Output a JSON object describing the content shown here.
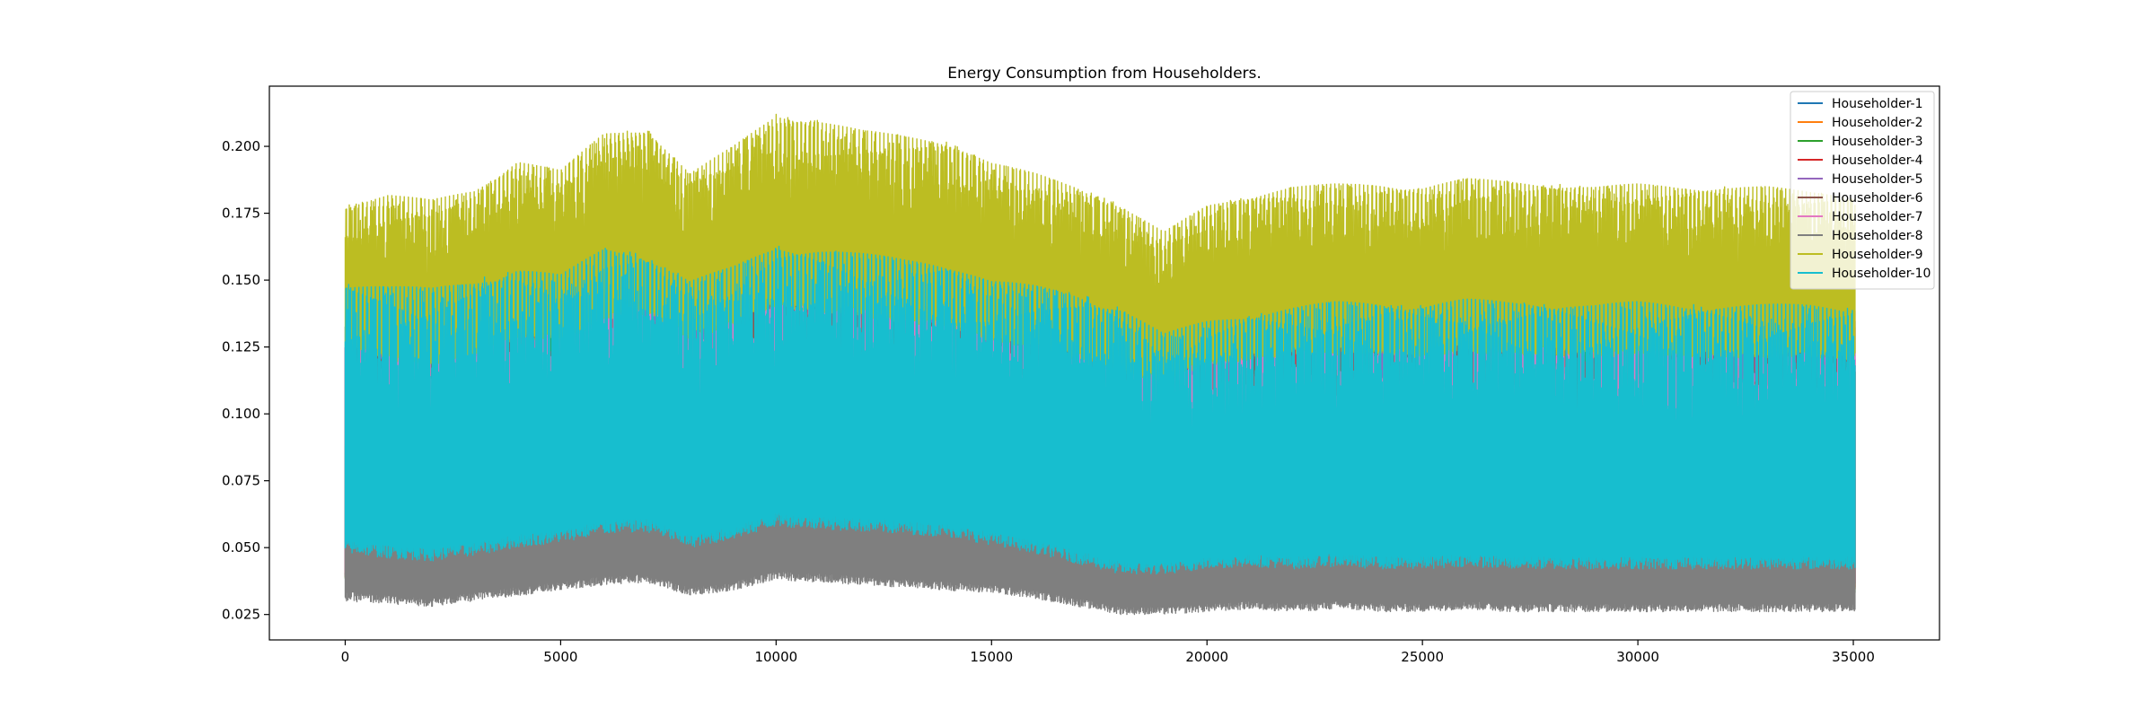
{
  "chart_data": {
    "type": "line",
    "title": "Energy Consumption from Householders.",
    "xlabel": "",
    "ylabel": "",
    "xlim": [
      -1760,
      37000
    ],
    "ylim": [
      0.0155,
      0.2225
    ],
    "x_ticks": [
      0,
      5000,
      10000,
      15000,
      20000,
      25000,
      30000,
      35000
    ],
    "x_tick_labels": [
      "0",
      "5000",
      "10000",
      "15000",
      "20000",
      "25000",
      "30000",
      "35000"
    ],
    "y_ticks": [
      0.025,
      0.05,
      0.075,
      0.1,
      0.125,
      0.15,
      0.175,
      0.2
    ],
    "y_tick_labels": [
      "0.025",
      "0.050",
      "0.075",
      "0.100",
      "0.125",
      "0.150",
      "0.175",
      "0.200"
    ],
    "grid": false,
    "legend_position": "upper right",
    "x_range": [
      0,
      35040
    ],
    "envelope_x": [
      0,
      1000,
      2000,
      3000,
      4000,
      5000,
      6000,
      7000,
      8000,
      9000,
      10000,
      11000,
      12000,
      13000,
      14000,
      15000,
      16000,
      17000,
      18000,
      19000,
      20000,
      21000,
      22000,
      23000,
      24000,
      25000,
      26000,
      27000,
      28000,
      29000,
      30000,
      31000,
      32000,
      33000,
      34000,
      35040
    ],
    "series": [
      {
        "name": "Householder-1",
        "color": "#1f77b4",
        "peak": [
          0.15,
          0.148,
          0.147,
          0.15,
          0.155,
          0.152,
          0.162,
          0.16,
          0.15,
          0.155,
          0.163,
          0.162,
          0.16,
          0.158,
          0.157,
          0.15,
          0.148,
          0.145,
          0.14,
          0.13,
          0.135,
          0.138,
          0.14,
          0.142,
          0.142,
          0.141,
          0.143,
          0.142,
          0.142,
          0.141,
          0.142,
          0.141,
          0.141,
          0.141,
          0.141,
          0.14
        ],
        "base": [
          0.038,
          0.036,
          0.036,
          0.038,
          0.04,
          0.042,
          0.045,
          0.046,
          0.04,
          0.042,
          0.047,
          0.046,
          0.045,
          0.044,
          0.043,
          0.041,
          0.038,
          0.035,
          0.03,
          0.03,
          0.032,
          0.033,
          0.032,
          0.033,
          0.032,
          0.032,
          0.033,
          0.032,
          0.032,
          0.032,
          0.032,
          0.032,
          0.032,
          0.032,
          0.032,
          0.032
        ]
      },
      {
        "name": "Householder-2",
        "color": "#ff7f0e",
        "peak": [
          0.15,
          0.148,
          0.147,
          0.15,
          0.155,
          0.152,
          0.162,
          0.16,
          0.15,
          0.155,
          0.163,
          0.162,
          0.16,
          0.158,
          0.157,
          0.15,
          0.148,
          0.145,
          0.14,
          0.13,
          0.135,
          0.138,
          0.14,
          0.142,
          0.142,
          0.141,
          0.143,
          0.142,
          0.142,
          0.141,
          0.142,
          0.141,
          0.141,
          0.141,
          0.141,
          0.14
        ],
        "base": [
          0.038,
          0.036,
          0.036,
          0.038,
          0.04,
          0.042,
          0.045,
          0.046,
          0.04,
          0.042,
          0.047,
          0.046,
          0.045,
          0.044,
          0.043,
          0.041,
          0.038,
          0.035,
          0.03,
          0.03,
          0.032,
          0.033,
          0.032,
          0.033,
          0.032,
          0.032,
          0.033,
          0.032,
          0.032,
          0.032,
          0.032,
          0.032,
          0.032,
          0.032,
          0.032,
          0.032
        ]
      },
      {
        "name": "Householder-3",
        "color": "#2ca02c",
        "peak": [
          0.15,
          0.148,
          0.147,
          0.15,
          0.155,
          0.152,
          0.162,
          0.16,
          0.15,
          0.155,
          0.163,
          0.162,
          0.16,
          0.158,
          0.157,
          0.15,
          0.148,
          0.145,
          0.14,
          0.13,
          0.135,
          0.138,
          0.14,
          0.142,
          0.142,
          0.141,
          0.143,
          0.142,
          0.142,
          0.141,
          0.142,
          0.141,
          0.141,
          0.141,
          0.141,
          0.14
        ],
        "base": [
          0.038,
          0.036,
          0.036,
          0.038,
          0.04,
          0.042,
          0.045,
          0.046,
          0.04,
          0.042,
          0.047,
          0.046,
          0.045,
          0.044,
          0.043,
          0.041,
          0.038,
          0.035,
          0.03,
          0.03,
          0.032,
          0.033,
          0.032,
          0.033,
          0.032,
          0.032,
          0.033,
          0.032,
          0.032,
          0.032,
          0.032,
          0.032,
          0.032,
          0.032,
          0.032,
          0.032
        ]
      },
      {
        "name": "Householder-4",
        "color": "#d62728",
        "peak": [
          0.15,
          0.148,
          0.147,
          0.15,
          0.155,
          0.152,
          0.162,
          0.16,
          0.15,
          0.155,
          0.163,
          0.162,
          0.16,
          0.158,
          0.157,
          0.15,
          0.148,
          0.145,
          0.14,
          0.13,
          0.135,
          0.138,
          0.14,
          0.142,
          0.142,
          0.141,
          0.143,
          0.142,
          0.142,
          0.141,
          0.142,
          0.141,
          0.141,
          0.141,
          0.141,
          0.14
        ],
        "base": [
          0.038,
          0.036,
          0.036,
          0.038,
          0.04,
          0.042,
          0.045,
          0.046,
          0.04,
          0.042,
          0.047,
          0.046,
          0.045,
          0.044,
          0.043,
          0.041,
          0.038,
          0.035,
          0.03,
          0.03,
          0.032,
          0.033,
          0.032,
          0.033,
          0.032,
          0.032,
          0.033,
          0.032,
          0.032,
          0.032,
          0.032,
          0.032,
          0.032,
          0.032,
          0.032,
          0.032
        ]
      },
      {
        "name": "Householder-5",
        "color": "#9467bd",
        "peak": [
          0.15,
          0.148,
          0.147,
          0.15,
          0.155,
          0.152,
          0.162,
          0.16,
          0.15,
          0.155,
          0.163,
          0.162,
          0.16,
          0.158,
          0.157,
          0.15,
          0.148,
          0.145,
          0.14,
          0.13,
          0.135,
          0.138,
          0.14,
          0.142,
          0.142,
          0.141,
          0.143,
          0.142,
          0.142,
          0.141,
          0.142,
          0.141,
          0.141,
          0.141,
          0.141,
          0.14
        ],
        "base": [
          0.038,
          0.036,
          0.036,
          0.038,
          0.04,
          0.042,
          0.045,
          0.046,
          0.04,
          0.042,
          0.047,
          0.046,
          0.045,
          0.044,
          0.043,
          0.041,
          0.038,
          0.035,
          0.03,
          0.03,
          0.032,
          0.033,
          0.032,
          0.033,
          0.032,
          0.032,
          0.033,
          0.032,
          0.032,
          0.032,
          0.032,
          0.032,
          0.032,
          0.032,
          0.032,
          0.032
        ]
      },
      {
        "name": "Householder-6",
        "color": "#8c564b",
        "peak": [
          0.15,
          0.148,
          0.147,
          0.15,
          0.155,
          0.152,
          0.162,
          0.16,
          0.15,
          0.155,
          0.163,
          0.162,
          0.16,
          0.158,
          0.157,
          0.15,
          0.148,
          0.145,
          0.14,
          0.13,
          0.135,
          0.138,
          0.14,
          0.142,
          0.142,
          0.141,
          0.143,
          0.142,
          0.142,
          0.141,
          0.142,
          0.141,
          0.141,
          0.141,
          0.141,
          0.14
        ],
        "base": [
          0.038,
          0.036,
          0.036,
          0.038,
          0.04,
          0.042,
          0.045,
          0.046,
          0.04,
          0.042,
          0.047,
          0.046,
          0.045,
          0.044,
          0.043,
          0.041,
          0.038,
          0.035,
          0.03,
          0.03,
          0.032,
          0.033,
          0.032,
          0.033,
          0.032,
          0.032,
          0.033,
          0.032,
          0.032,
          0.032,
          0.032,
          0.032,
          0.032,
          0.032,
          0.032,
          0.032
        ]
      },
      {
        "name": "Householder-7",
        "color": "#e377c2",
        "peak": [
          0.15,
          0.148,
          0.147,
          0.15,
          0.155,
          0.152,
          0.162,
          0.16,
          0.15,
          0.155,
          0.163,
          0.162,
          0.16,
          0.158,
          0.157,
          0.15,
          0.148,
          0.145,
          0.14,
          0.13,
          0.135,
          0.138,
          0.14,
          0.142,
          0.142,
          0.141,
          0.143,
          0.142,
          0.142,
          0.141,
          0.142,
          0.141,
          0.141,
          0.141,
          0.141,
          0.14
        ],
        "base": [
          0.038,
          0.036,
          0.036,
          0.038,
          0.04,
          0.042,
          0.045,
          0.046,
          0.04,
          0.042,
          0.047,
          0.046,
          0.045,
          0.044,
          0.043,
          0.041,
          0.038,
          0.035,
          0.03,
          0.03,
          0.032,
          0.033,
          0.032,
          0.033,
          0.032,
          0.032,
          0.033,
          0.032,
          0.032,
          0.032,
          0.032,
          0.032,
          0.032,
          0.032,
          0.032,
          0.032
        ]
      },
      {
        "name": "Householder-8",
        "color": "#7f7f7f",
        "peak": [
          0.105,
          0.095,
          0.093,
          0.097,
          0.102,
          0.1,
          0.107,
          0.105,
          0.095,
          0.1,
          0.108,
          0.107,
          0.106,
          0.104,
          0.103,
          0.098,
          0.095,
          0.092,
          0.088,
          0.085,
          0.088,
          0.09,
          0.09,
          0.091,
          0.091,
          0.09,
          0.092,
          0.091,
          0.091,
          0.09,
          0.091,
          0.09,
          0.09,
          0.09,
          0.09,
          0.09
        ],
        "base": [
          0.03,
          0.029,
          0.028,
          0.03,
          0.032,
          0.034,
          0.036,
          0.037,
          0.032,
          0.034,
          0.038,
          0.037,
          0.036,
          0.035,
          0.034,
          0.033,
          0.031,
          0.028,
          0.025,
          0.025,
          0.026,
          0.027,
          0.026,
          0.027,
          0.026,
          0.026,
          0.027,
          0.026,
          0.026,
          0.026,
          0.026,
          0.026,
          0.026,
          0.026,
          0.026,
          0.026
        ]
      },
      {
        "name": "Householder-9",
        "color": "#bcbd22",
        "peak": [
          0.178,
          0.182,
          0.18,
          0.184,
          0.195,
          0.191,
          0.205,
          0.207,
          0.19,
          0.2,
          0.212,
          0.21,
          0.206,
          0.204,
          0.202,
          0.194,
          0.19,
          0.185,
          0.178,
          0.168,
          0.178,
          0.182,
          0.185,
          0.186,
          0.186,
          0.185,
          0.188,
          0.187,
          0.186,
          0.185,
          0.186,
          0.185,
          0.185,
          0.185,
          0.183,
          0.182
        ],
        "base": [
          0.125,
          0.12,
          0.118,
          0.122,
          0.128,
          0.126,
          0.135,
          0.137,
          0.128,
          0.132,
          0.14,
          0.138,
          0.136,
          0.134,
          0.132,
          0.127,
          0.124,
          0.12,
          0.115,
          0.112,
          0.118,
          0.12,
          0.122,
          0.122,
          0.122,
          0.121,
          0.123,
          0.122,
          0.122,
          0.121,
          0.122,
          0.121,
          0.121,
          0.121,
          0.121,
          0.12
        ]
      },
      {
        "name": "Householder-10",
        "color": "#17becf",
        "peak": [
          0.15,
          0.148,
          0.147,
          0.15,
          0.155,
          0.152,
          0.162,
          0.16,
          0.15,
          0.155,
          0.163,
          0.162,
          0.16,
          0.158,
          0.157,
          0.15,
          0.148,
          0.145,
          0.14,
          0.13,
          0.135,
          0.138,
          0.14,
          0.142,
          0.142,
          0.141,
          0.143,
          0.142,
          0.142,
          0.141,
          0.142,
          0.141,
          0.141,
          0.141,
          0.141,
          0.14
        ],
        "base": [
          0.048,
          0.046,
          0.045,
          0.047,
          0.05,
          0.052,
          0.055,
          0.056,
          0.05,
          0.053,
          0.058,
          0.057,
          0.056,
          0.055,
          0.054,
          0.051,
          0.048,
          0.044,
          0.04,
          0.04,
          0.042,
          0.043,
          0.042,
          0.043,
          0.042,
          0.042,
          0.043,
          0.042,
          0.042,
          0.042,
          0.042,
          0.042,
          0.042,
          0.042,
          0.042,
          0.042
        ]
      }
    ]
  }
}
